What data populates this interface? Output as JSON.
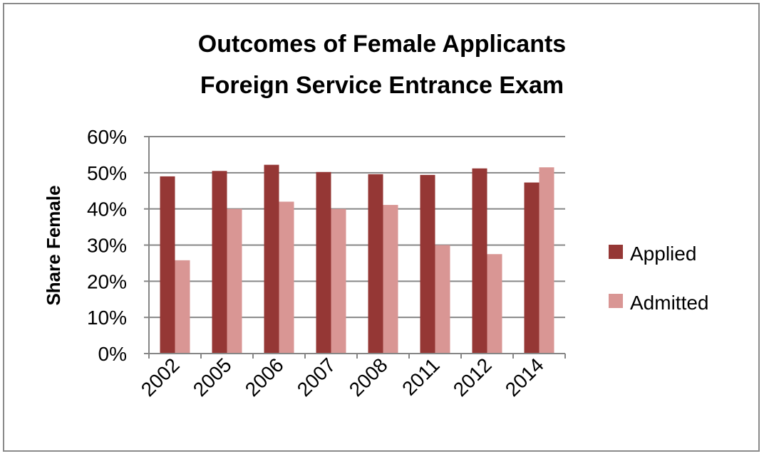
{
  "chart_data": {
    "type": "bar",
    "title_lines": [
      "Outcomes of Female Applicants",
      "Foreign Service Entrance Exam"
    ],
    "xlabel": "",
    "ylabel": "Share Female",
    "categories": [
      "2002",
      "2005",
      "2006",
      "2007",
      "2008",
      "2011",
      "2012",
      "2014"
    ],
    "series": [
      {
        "name": "Applied",
        "color": "#953735",
        "values": [
          0.49,
          0.505,
          0.522,
          0.502,
          0.496,
          0.494,
          0.512,
          0.473
        ]
      },
      {
        "name": "Admitted",
        "color": "#d99694",
        "values": [
          0.258,
          0.4,
          0.42,
          0.4,
          0.411,
          0.3,
          0.275,
          0.515
        ]
      }
    ],
    "ylim": [
      0,
      0.6
    ],
    "yticks": [
      0,
      0.1,
      0.2,
      0.3,
      0.4,
      0.5,
      0.6
    ],
    "ytick_labels": [
      "0%",
      "10%",
      "20%",
      "30%",
      "40%",
      "50%",
      "60%"
    ],
    "grid": true,
    "legend_position": "right"
  }
}
